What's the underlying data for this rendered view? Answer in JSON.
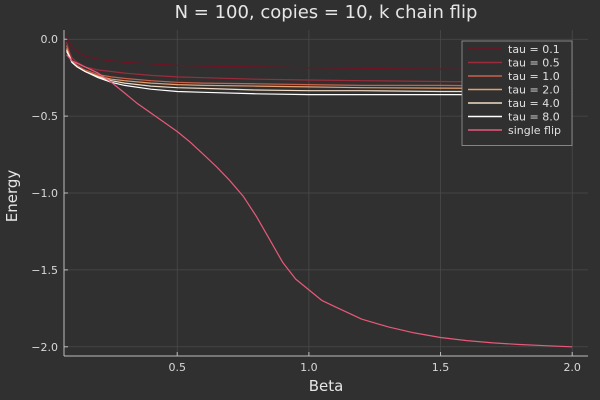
{
  "chart_data": {
    "type": "line",
    "title": "N = 100, copies = 10, k chain flip",
    "xlabel": "Beta",
    "ylabel": "Energy",
    "xlim": [
      0.07,
      2.06
    ],
    "ylim": [
      -2.06,
      0.06
    ],
    "xticks": [
      0.5,
      1.0,
      1.5,
      2.0
    ],
    "xtick_labels": [
      "0.5",
      "1.0",
      "1.5",
      "2.0"
    ],
    "yticks": [
      0.0,
      -0.5,
      -1.0,
      -1.5,
      -2.0
    ],
    "ytick_labels": [
      "0.0",
      "−0.5",
      "−1.0",
      "−1.5",
      "−2.0"
    ],
    "grid": true,
    "legend_position": "top-right",
    "series": [
      {
        "name": "tau = 0.1",
        "color": "#6e1424",
        "x": [
          0.08,
          0.09,
          0.1,
          0.12,
          0.15,
          0.2,
          0.25,
          0.3,
          0.4,
          0.5,
          0.6,
          0.8,
          1.0,
          1.2,
          1.5,
          1.8,
          2.0
        ],
        "y": [
          0.02,
          -0.02,
          -0.05,
          -0.08,
          -0.11,
          -0.13,
          -0.14,
          -0.15,
          -0.16,
          -0.17,
          -0.175,
          -0.18,
          -0.185,
          -0.19,
          -0.195,
          -0.198,
          -0.2
        ]
      },
      {
        "name": "tau = 0.5",
        "color": "#9e2b3b",
        "x": [
          0.08,
          0.09,
          0.1,
          0.12,
          0.15,
          0.2,
          0.25,
          0.3,
          0.4,
          0.5,
          0.6,
          0.8,
          1.0,
          1.2,
          1.5,
          1.8,
          2.0
        ],
        "y": [
          -0.02,
          -0.08,
          -0.12,
          -0.15,
          -0.18,
          -0.2,
          -0.21,
          -0.22,
          -0.235,
          -0.245,
          -0.25,
          -0.26,
          -0.265,
          -0.27,
          -0.275,
          -0.28,
          -0.28
        ]
      },
      {
        "name": "tau = 1.0",
        "color": "#c9604a",
        "x": [
          0.08,
          0.09,
          0.1,
          0.12,
          0.15,
          0.2,
          0.25,
          0.3,
          0.4,
          0.5,
          0.6,
          0.8,
          1.0,
          1.2,
          1.5,
          1.8,
          2.0
        ],
        "y": [
          -0.04,
          -0.1,
          -0.14,
          -0.17,
          -0.2,
          -0.23,
          -0.245,
          -0.255,
          -0.27,
          -0.28,
          -0.285,
          -0.29,
          -0.295,
          -0.3,
          -0.3,
          -0.305,
          -0.305
        ]
      },
      {
        "name": "tau = 2.0",
        "color": "#e3a070",
        "x": [
          0.08,
          0.09,
          0.1,
          0.12,
          0.15,
          0.2,
          0.25,
          0.3,
          0.4,
          0.5,
          0.6,
          0.8,
          1.0,
          1.2,
          1.5,
          1.8,
          2.0
        ],
        "y": [
          -0.06,
          -0.11,
          -0.15,
          -0.18,
          -0.21,
          -0.24,
          -0.26,
          -0.27,
          -0.285,
          -0.295,
          -0.3,
          -0.305,
          -0.31,
          -0.315,
          -0.318,
          -0.32,
          -0.32
        ]
      },
      {
        "name": "tau = 4.0",
        "color": "#f2dcc4",
        "x": [
          0.08,
          0.09,
          0.1,
          0.12,
          0.15,
          0.2,
          0.25,
          0.3,
          0.4,
          0.5,
          0.6,
          0.8,
          1.0,
          1.2,
          1.5,
          1.8,
          2.0
        ],
        "y": [
          -0.07,
          -0.11,
          -0.15,
          -0.18,
          -0.21,
          -0.245,
          -0.27,
          -0.285,
          -0.305,
          -0.315,
          -0.32,
          -0.33,
          -0.335,
          -0.335,
          -0.34,
          -0.34,
          -0.34
        ]
      },
      {
        "name": "tau = 8.0",
        "color": "#ffffff",
        "x": [
          0.08,
          0.09,
          0.1,
          0.12,
          0.15,
          0.2,
          0.25,
          0.3,
          0.4,
          0.5,
          0.6,
          0.8,
          1.0,
          1.2,
          1.5,
          1.8,
          2.0
        ],
        "y": [
          -0.08,
          -0.11,
          -0.15,
          -0.18,
          -0.21,
          -0.25,
          -0.28,
          -0.3,
          -0.325,
          -0.34,
          -0.345,
          -0.355,
          -0.36,
          -0.36,
          -0.36,
          -0.36,
          -0.36
        ]
      },
      {
        "name": "single flip",
        "color": "#e8597a",
        "x": [
          0.08,
          0.1,
          0.15,
          0.2,
          0.25,
          0.3,
          0.35,
          0.4,
          0.45,
          0.5,
          0.55,
          0.6,
          0.65,
          0.7,
          0.75,
          0.8,
          0.85,
          0.9,
          0.95,
          1.0,
          1.05,
          1.1,
          1.15,
          1.2,
          1.3,
          1.4,
          1.5,
          1.6,
          1.7,
          1.8,
          1.9,
          2.0
        ],
        "y": [
          -0.1,
          -0.14,
          -0.18,
          -0.22,
          -0.28,
          -0.35,
          -0.42,
          -0.48,
          -0.54,
          -0.6,
          -0.67,
          -0.75,
          -0.83,
          -0.92,
          -1.02,
          -1.15,
          -1.3,
          -1.45,
          -1.56,
          -1.63,
          -1.7,
          -1.74,
          -1.78,
          -1.82,
          -1.87,
          -1.91,
          -1.94,
          -1.96,
          -1.975,
          -1.985,
          -1.993,
          -2.0
        ]
      }
    ]
  }
}
